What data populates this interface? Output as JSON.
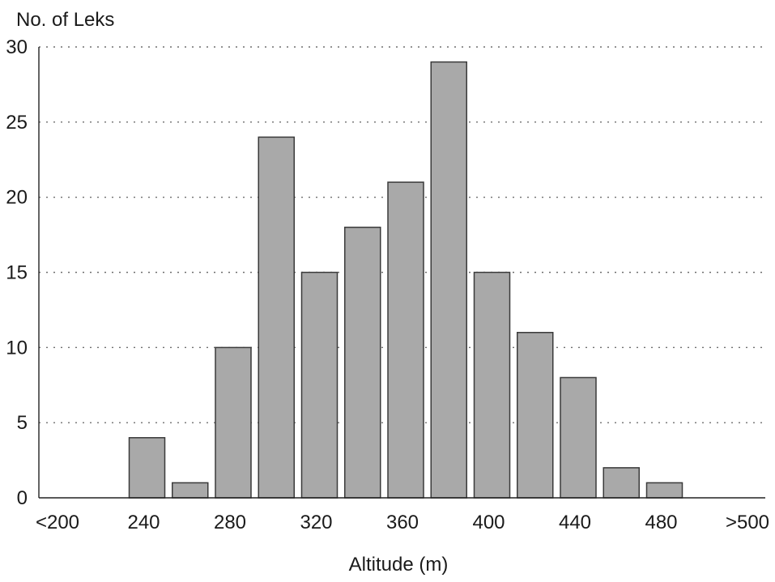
{
  "chart_data": {
    "type": "bar",
    "ylabel": "No. of Leks",
    "xlabel": "Altitude (m)",
    "ylim": [
      0,
      30
    ],
    "y_ticks": [
      0,
      5,
      10,
      15,
      20,
      25,
      30
    ],
    "x_tick_labels": [
      "<200",
      "240",
      "280",
      "320",
      "360",
      "400",
      "440",
      "480",
      ">500"
    ],
    "grid": "horizontal dotted",
    "categories": [
      "<200",
      "220",
      "240",
      "260",
      "280",
      "300",
      "320",
      "340",
      "360",
      "380",
      "400",
      "420",
      "440",
      "460",
      "480",
      "500",
      ">500"
    ],
    "values": [
      0,
      0,
      4,
      1,
      10,
      24,
      15,
      18,
      21,
      29,
      15,
      11,
      8,
      2,
      1,
      0,
      0
    ],
    "colors": {
      "bar_fill": "#a9a9a9",
      "bar_stroke": "#3a3a3a",
      "grid": "#6f6f6f"
    }
  }
}
